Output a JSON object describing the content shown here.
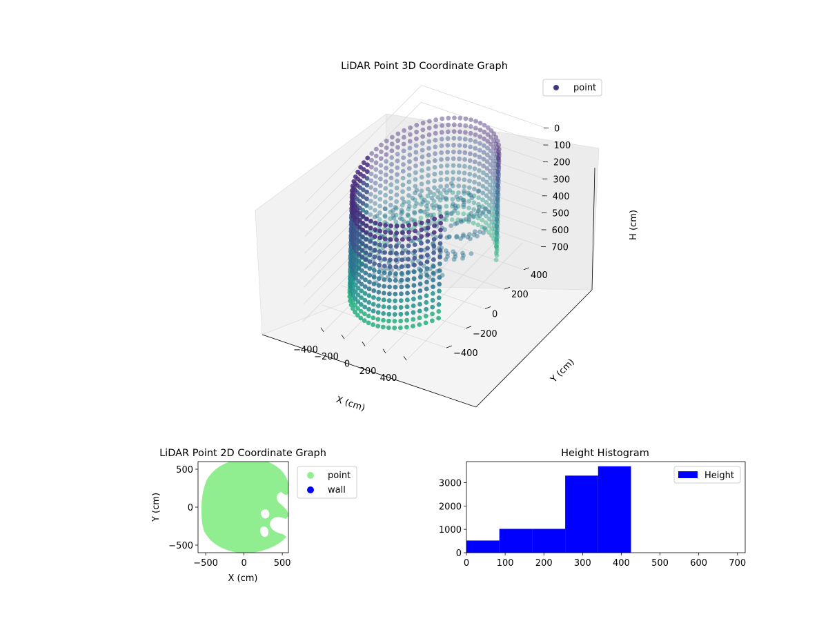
{
  "chart_data": [
    {
      "type": "scatter",
      "projection": "3d",
      "title": "LiDAR Point 3D Coordinate Graph",
      "xlabel": "X (cm)",
      "ylabel": "Y (cm)",
      "zlabel": "H (cm)",
      "xticks": [
        "−400",
        "−200",
        "0",
        "200",
        "400"
      ],
      "yticks": [
        "−400",
        "−200",
        "0",
        "200",
        "400"
      ],
      "zticks": [
        "0",
        "100",
        "200",
        "300",
        "400",
        "500",
        "600",
        "700"
      ],
      "xlim": [
        -600,
        600
      ],
      "ylim": [
        -600,
        600
      ],
      "zlim": [
        0,
        720
      ],
      "z_inverted": true,
      "grid": true,
      "legend": {
        "placement": "top-right",
        "entries": [
          "point"
        ]
      },
      "series": [
        {
          "name": "point",
          "color": "#472d7b",
          "colormap": "viridis"
        }
      ],
      "shape": {
        "wall_radius": 520,
        "wall_height_top": 0,
        "wall_height_bottom": 700,
        "gap_angle_deg": [
          -35,
          35
        ],
        "marker_colors": [
          "#472d7b",
          "#3b528b",
          "#2c728e",
          "#21918c",
          "#28ae80"
        ]
      }
    },
    {
      "type": "scatter",
      "title": "LiDAR Point 2D Coordinate Graph",
      "xlabel": "X (cm)",
      "ylabel": "Y (cm)",
      "xticks": [
        "−500",
        "0",
        "500"
      ],
      "yticks": [
        "−500",
        "0",
        "500"
      ],
      "xlim": [
        -600,
        580
      ],
      "ylim": [
        -600,
        600
      ],
      "legend": {
        "placement": "right",
        "entries": [
          "point",
          "wall"
        ]
      },
      "series": [
        {
          "name": "point",
          "color": "#90ee90"
        },
        {
          "name": "wall",
          "color": "#0000ff"
        }
      ]
    },
    {
      "type": "bar",
      "title": "Height Histogram",
      "xlabel": "",
      "ylabel": "",
      "bins": [
        {
          "x0": 0,
          "x1": 85,
          "count": 520
        },
        {
          "x0": 85,
          "x1": 170,
          "count": 1020
        },
        {
          "x0": 170,
          "x1": 255,
          "count": 1020
        },
        {
          "x0": 255,
          "x1": 340,
          "count": 3300
        },
        {
          "x0": 340,
          "x1": 425,
          "count": 3700
        }
      ],
      "xticks": [
        "0",
        "100",
        "200",
        "300",
        "400",
        "500",
        "600",
        "700"
      ],
      "yticks": [
        "0",
        "1000",
        "2000",
        "3000"
      ],
      "xlim": [
        0,
        720
      ],
      "ylim": [
        0,
        3900
      ],
      "legend": {
        "placement": "top-right",
        "entries": [
          "Height"
        ]
      },
      "series": [
        {
          "name": "Height",
          "color": "#0000ff"
        }
      ]
    }
  ]
}
